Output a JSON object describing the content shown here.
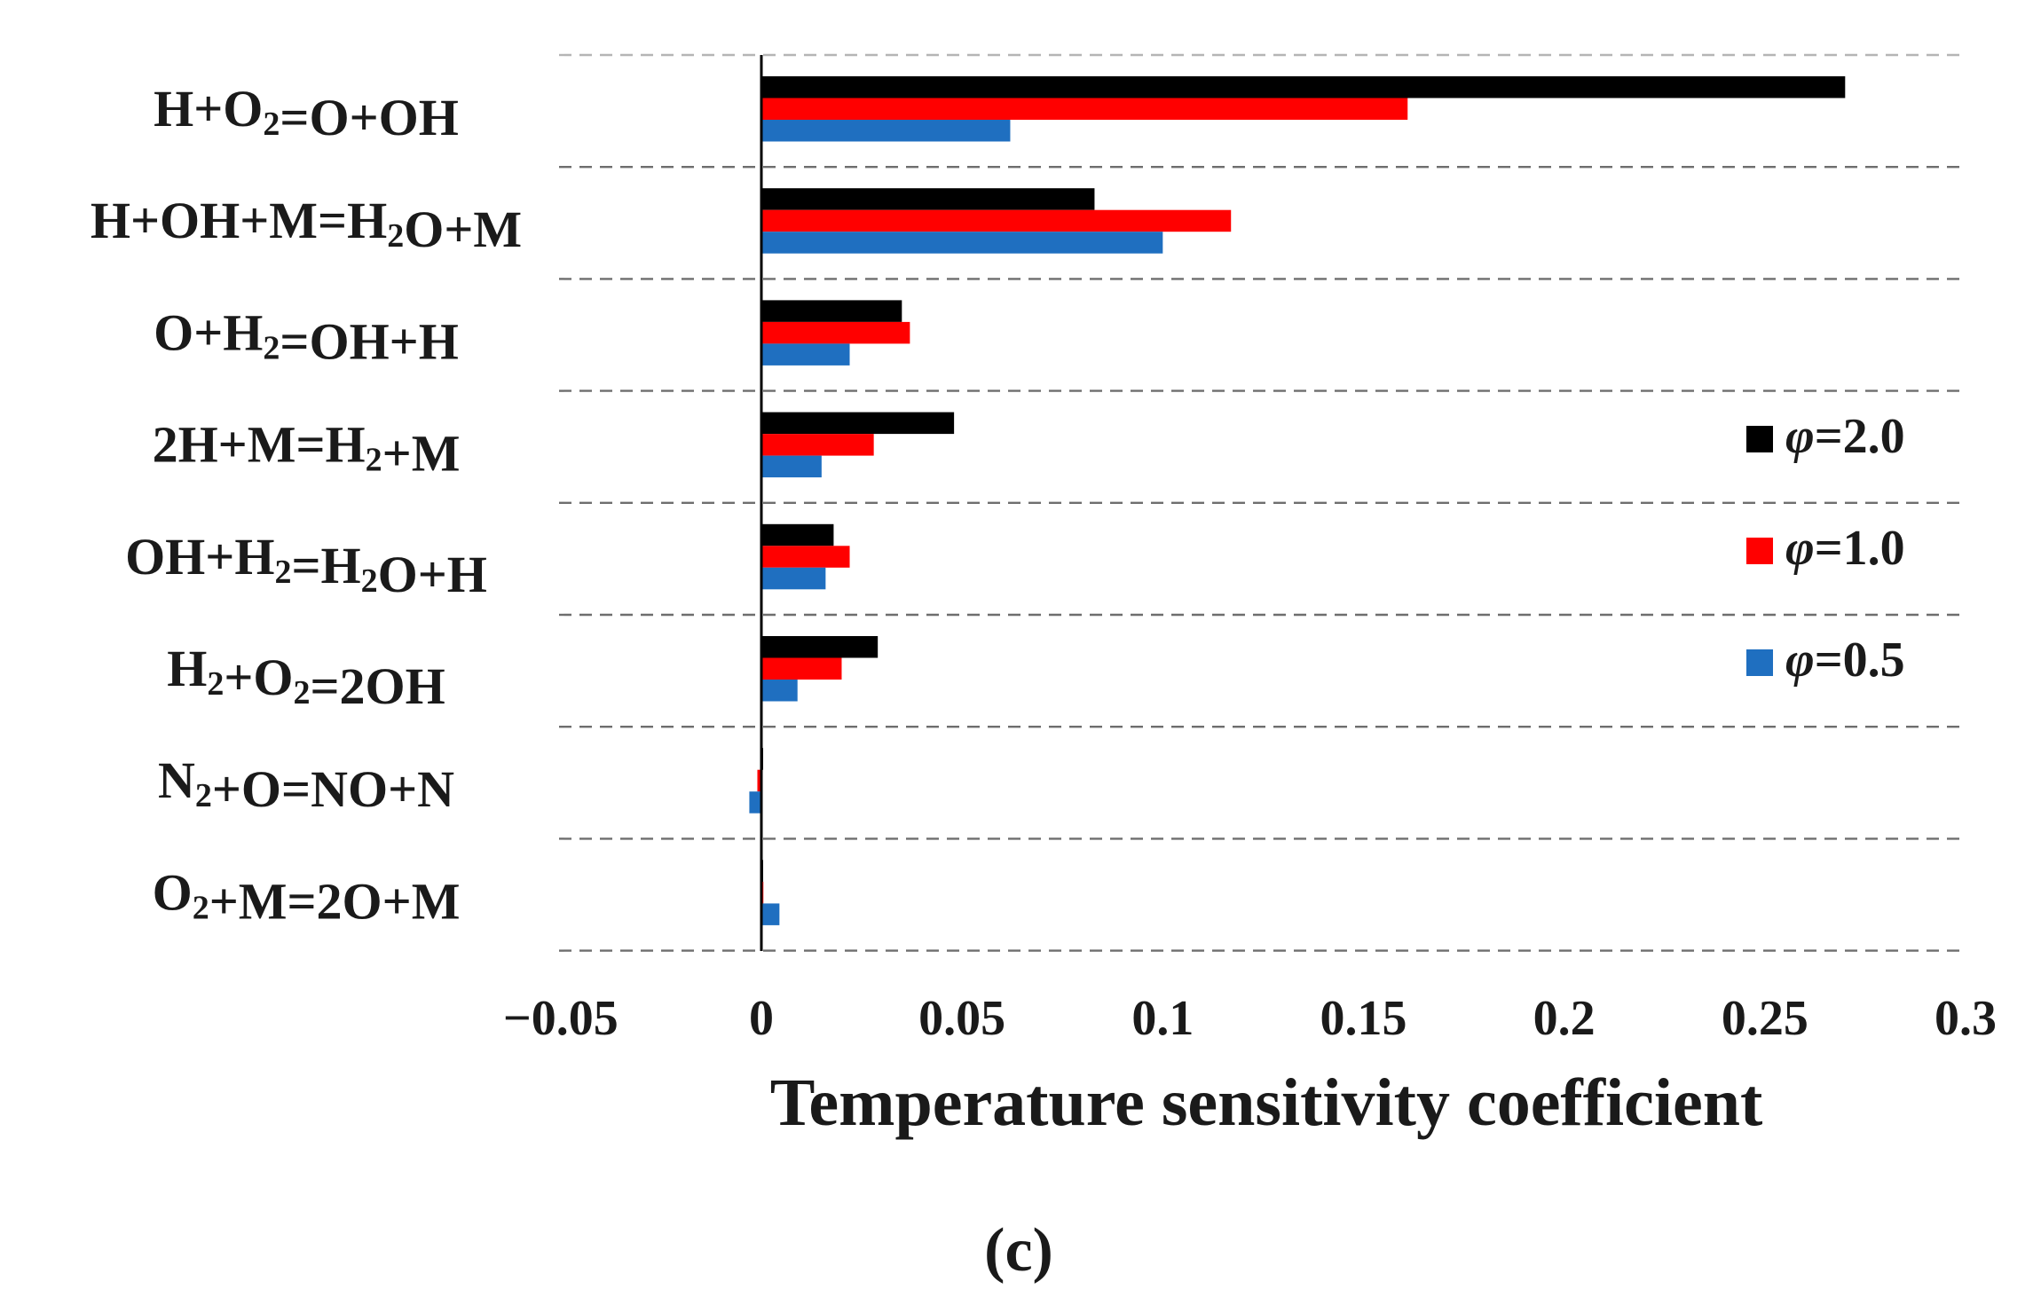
{
  "chart_data": {
    "type": "bar",
    "orientation": "horizontal",
    "categories": [
      {
        "parts": [
          {
            "t": "H+O"
          },
          {
            "t": "2",
            "sub": true
          },
          {
            "t": "=O+OH"
          }
        ]
      },
      {
        "parts": [
          {
            "t": "H+OH+M=H"
          },
          {
            "t": "2",
            "sub": true
          },
          {
            "t": "O+M"
          }
        ]
      },
      {
        "parts": [
          {
            "t": "O+H"
          },
          {
            "t": "2",
            "sub": true
          },
          {
            "t": "=OH+H"
          }
        ]
      },
      {
        "parts": [
          {
            "t": "2H+M=H"
          },
          {
            "t": "2",
            "sub": true
          },
          {
            "t": "+M"
          }
        ]
      },
      {
        "parts": [
          {
            "t": "OH+H"
          },
          {
            "t": "2",
            "sub": true
          },
          {
            "t": "=H"
          },
          {
            "t": "2",
            "sub": true
          },
          {
            "t": "O+H"
          }
        ]
      },
      {
        "parts": [
          {
            "t": "H"
          },
          {
            "t": "2",
            "sub": true
          },
          {
            "t": "+O"
          },
          {
            "t": "2",
            "sub": true
          },
          {
            "t": "=2OH"
          }
        ]
      },
      {
        "parts": [
          {
            "t": "N"
          },
          {
            "t": "2",
            "sub": true
          },
          {
            "t": "+O=NO+N"
          }
        ]
      },
      {
        "parts": [
          {
            "t": "O"
          },
          {
            "t": "2",
            "sub": true
          },
          {
            "t": "+M=2O+M"
          }
        ]
      }
    ],
    "series": [
      {
        "name": "φ=2.0",
        "symbol": "φ",
        "value_text": "=2.0",
        "color": "#000000",
        "values": [
          0.27,
          0.083,
          0.035,
          0.048,
          0.018,
          0.029,
          0.0,
          0.0
        ]
      },
      {
        "name": "φ=1.0",
        "symbol": "φ",
        "value_text": "=1.0",
        "color": "#ff0000",
        "values": [
          0.161,
          0.117,
          0.037,
          0.028,
          0.022,
          0.02,
          -0.001,
          0.0005
        ]
      },
      {
        "name": "φ=0.5",
        "symbol": "φ",
        "value_text": "=0.5",
        "color": "#1f6fc0",
        "values": [
          0.062,
          0.1,
          0.022,
          0.015,
          0.016,
          0.009,
          -0.003,
          0.0045
        ]
      }
    ],
    "xlim": [
      -0.05,
      0.3
    ],
    "xticks": [
      {
        "v": -0.05,
        "label": "−0.05"
      },
      {
        "v": 0,
        "label": "0"
      },
      {
        "v": 0.05,
        "label": "0.05"
      },
      {
        "v": 0.1,
        "label": "0.1"
      },
      {
        "v": 0.15,
        "label": "0.15"
      },
      {
        "v": 0.2,
        "label": "0.2"
      },
      {
        "v": 0.25,
        "label": "0.25"
      },
      {
        "v": 0.3,
        "label": "0.3"
      }
    ],
    "xlabel": "Temperature sensitivity coefficient",
    "ylabel": "",
    "grid": "horizontal-dashed",
    "legend_position": "right"
  },
  "caption": "(c)"
}
